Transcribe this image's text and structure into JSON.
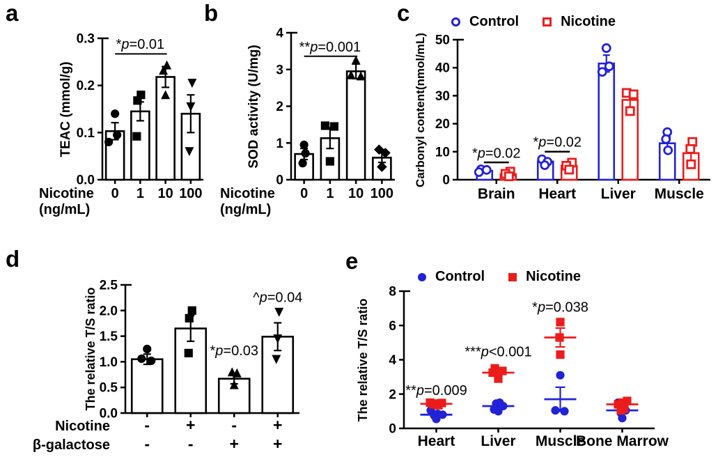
{
  "figure": {
    "background": "#ffffff",
    "colors": {
      "control": "#2222d6",
      "nicotine": "#ed1c1c",
      "black": "#000000"
    }
  },
  "panels": {
    "a": {
      "letter": "a"
    },
    "b": {
      "letter": "b"
    },
    "c": {
      "letter": "c",
      "legend": [
        {
          "label": "Control",
          "marker": "open-circle",
          "color": "#2222d6"
        },
        {
          "label": "Nicotine",
          "marker": "open-square",
          "color": "#ed1c1c"
        }
      ]
    },
    "d": {
      "letter": "d"
    },
    "e": {
      "letter": "e",
      "legend": [
        {
          "label": "Control",
          "marker": "circle",
          "color": "#2222d6"
        },
        {
          "label": "Nicotine",
          "marker": "square",
          "color": "#ed1c1c"
        }
      ]
    }
  },
  "chart_data": [
    {
      "id": "a",
      "type": "bar",
      "title": "",
      "ylabel": "TEAC (mmol/g)",
      "ylim": [
        0,
        0.3
      ],
      "yticks": [
        0,
        0.1,
        0.2,
        0.3
      ],
      "ytick_labels": [
        "0.0",
        "0.1",
        "0.2",
        "0.3"
      ],
      "categories": [
        "0",
        "1",
        "10",
        "100"
      ],
      "xtick_labels": [
        "0",
        "1",
        "10",
        "100"
      ],
      "xaxis_prefix": "Nicotine",
      "xaxis_prefix2": "(ng/mL)",
      "values": [
        0.103,
        0.145,
        0.218,
        0.14
      ],
      "errors": [
        0.018,
        0.02,
        0.022,
        0.04
      ],
      "points": [
        [
          0.14,
          0.095,
          0.08
        ],
        [
          0.18,
          0.168,
          0.092
        ],
        [
          0.243,
          0.232,
          0.18
        ],
        [
          0.205,
          0.155,
          0.06
        ]
      ],
      "point_dx": [
        [
          0,
          3,
          -9
        ],
        [
          1,
          -4,
          -5
        ],
        [
          2,
          -3,
          0
        ],
        [
          2,
          0,
          -2
        ]
      ],
      "point_markers": [
        "circle",
        "square",
        "triangle-up",
        "triangle-down"
      ],
      "annotation": {
        "pre": "*",
        "post": "=0.01",
        "from": 0,
        "to": 2,
        "line_y": 0.267,
        "text_y": 0.278
      }
    },
    {
      "id": "b",
      "type": "bar",
      "title": "",
      "ylabel": "SOD activity (U/mg)",
      "ylim": [
        0,
        4
      ],
      "yticks": [
        0,
        1,
        2,
        3,
        4
      ],
      "ytick_labels": [
        "0",
        "1",
        "2",
        "3",
        "4"
      ],
      "categories": [
        "0",
        "1",
        "10",
        "100"
      ],
      "xtick_labels": [
        "0",
        "1",
        "10",
        "100"
      ],
      "xaxis_prefix": "Nicotine",
      "xaxis_prefix2": "(ng/mL)",
      "values": [
        0.7,
        1.13,
        2.95,
        0.6
      ],
      "errors": [
        0.15,
        0.28,
        0.2,
        0.13
      ],
      "points": [
        [
          0.95,
          0.72,
          0.45
        ],
        [
          1.47,
          1.45,
          0.5
        ],
        [
          3.25,
          2.85,
          2.82
        ],
        [
          0.82,
          0.73,
          0.35
        ]
      ],
      "point_dx": [
        [
          0,
          2,
          -2
        ],
        [
          -7,
          6,
          0
        ],
        [
          0,
          -7,
          7
        ],
        [
          -4,
          5,
          0
        ]
      ],
      "point_markers": [
        "circle",
        "square",
        "triangle-up",
        "diamond"
      ],
      "annotation": {
        "pre": "**",
        "post": "=0.001",
        "from": 0,
        "to": 2,
        "line_y": 3.36,
        "text_y": 3.49
      }
    },
    {
      "id": "c",
      "type": "grouped-bar",
      "title": "",
      "ylabel": "Carbonyl content(nmol/mL)",
      "ylim": [
        0,
        50
      ],
      "yticks": [
        0,
        10,
        20,
        30,
        40,
        50
      ],
      "ytick_labels": [
        "0",
        "10",
        "20",
        "30",
        "40",
        "50"
      ],
      "categories": [
        "Brain",
        "Heart",
        "Liver",
        "Muscle"
      ],
      "legend_position": "top",
      "series": [
        {
          "name": "Control",
          "color": "#2222d6",
          "marker": "circle",
          "values": [
            3.2,
            6.5,
            41.5,
            13
          ],
          "errors": [
            0.5,
            0.7,
            3,
            2.3
          ],
          "points": [
            [
              3.7,
              3.5,
              2.7
            ],
            [
              7.3,
              6.4,
              5.2
            ],
            [
              47,
              40.5,
              38.5
            ],
            [
              17,
              14.5,
              10.5
            ]
          ],
          "point_dx": [
            [
              -5,
              3,
              -8
            ],
            [
              -5,
              3,
              -1
            ],
            [
              0,
              4,
              -6
            ],
            [
              0,
              -2,
              1
            ]
          ]
        },
        {
          "name": "Nicotine",
          "color": "#ed1c1c",
          "marker": "square",
          "values": [
            2,
            5,
            28.5,
            9.5
          ],
          "errors": [
            0.7,
            0.9,
            2.5,
            3
          ],
          "points": [
            [
              2.9,
              2.1,
              1.2
            ],
            [
              6.1,
              5,
              3.6
            ],
            [
              31,
              30.5,
              24.5
            ],
            [
              13.5,
              11,
              5.5
            ]
          ],
          "point_dx": [
            [
              3,
              -4,
              1
            ],
            [
              4,
              -4,
              0
            ],
            [
              -5,
              5,
              0
            ],
            [
              2,
              -1,
              0
            ]
          ]
        }
      ],
      "annotations": [
        {
          "pre": "*",
          "post": "=0.02",
          "cat": 0,
          "line_y": 6.2,
          "text_y": 7.8
        },
        {
          "pre": "*",
          "post": "=0.02",
          "cat": 1,
          "line_y": 10,
          "text_y": 11.8
        }
      ]
    },
    {
      "id": "d",
      "type": "bar",
      "title": "",
      "ylabel": "The relative T/S ratio",
      "ylim": [
        0,
        2.5
      ],
      "yticks": [
        0,
        0.5,
        1,
        1.5,
        2,
        2.5
      ],
      "ytick_labels": [
        "0.0",
        "0.5",
        "1.0",
        "1.5",
        "2.0",
        "2.5"
      ],
      "categories": [
        "1",
        "2",
        "3",
        "4"
      ],
      "xrows": [
        {
          "label": "Nicotine",
          "values": [
            "-",
            "+",
            "-",
            "+"
          ]
        },
        {
          "label": "β-galactose",
          "values": [
            "-",
            "-",
            "+",
            "+"
          ]
        }
      ],
      "values": [
        1.05,
        1.65,
        0.67,
        1.49
      ],
      "errors": [
        0.1,
        0.25,
        0.1,
        0.27
      ],
      "points": [
        [
          1.25,
          1.06,
          1.02
        ],
        [
          2.0,
          1.85,
          1.17
        ],
        [
          0.8,
          0.78,
          0.55
        ],
        [
          1.97,
          1.45,
          1.05
        ]
      ],
      "point_dx": [
        [
          0,
          -8,
          6
        ],
        [
          2,
          -2,
          -3
        ],
        [
          -3,
          4,
          0
        ],
        [
          2,
          0,
          -2
        ]
      ],
      "point_markers": [
        "circle",
        "square",
        "triangle-up",
        "triangle-down"
      ],
      "annotations": [
        {
          "pre": "*",
          "post": "=0.03",
          "bar": 2,
          "y": 1.13
        },
        {
          "pre": "^",
          "post": "=0.04",
          "bar": 3,
          "y": 2.17
        }
      ]
    },
    {
      "id": "e",
      "type": "scatter",
      "title": "",
      "ylabel": "The relative T/S ratio",
      "ylim": [
        0,
        8
      ],
      "yticks": [
        0,
        2,
        4,
        6,
        8
      ],
      "ytick_labels": [
        "0",
        "2",
        "4",
        "6",
        "8"
      ],
      "categories": [
        "Heart",
        "Liver",
        "Muscle",
        "Bone Marrow"
      ],
      "legend_position": "top",
      "series": [
        {
          "name": "Control",
          "color": "#2222d6",
          "marker": "circle",
          "groups": [
            {
              "mean": 0.8,
              "sem": 0.09,
              "points": [
                1.05,
                0.85,
                0.8,
                0.75,
                0.55
              ],
              "dx": [
                -8,
                2,
                9,
                -3,
                0
              ]
            },
            {
              "mean": 1.3,
              "sem": 0.1,
              "points": [
                1.5,
                1.45,
                1.3,
                1.1,
                1.0
              ],
              "dx": [
                2,
                -3,
                7,
                -6,
                0
              ]
            },
            {
              "mean": 1.7,
              "sem": 0.7,
              "points": [
                3.1,
                1.05,
                1.0
              ],
              "dx": [
                0,
                -7,
                6
              ]
            },
            {
              "mean": 1.05,
              "sem": 0.16,
              "points": [
                1.5,
                1.2,
                1.05,
                0.9,
                0.6
              ],
              "dx": [
                -6,
                0,
                5,
                -2,
                0
              ]
            }
          ]
        },
        {
          "name": "Nicotine",
          "color": "#ed1c1c",
          "marker": "square",
          "groups": [
            {
              "mean": 1.43,
              "sem": 0.06,
              "points": [
                1.5,
                1.48,
                1.45,
                1.4,
                1.35
              ],
              "dx": [
                -9,
                8,
                0,
                -4,
                3
              ]
            },
            {
              "mean": 3.25,
              "sem": 0.1,
              "points": [
                3.5,
                3.35,
                3.3,
                3.25,
                2.9
              ],
              "dx": [
                -5,
                6,
                0,
                -8,
                0
              ]
            },
            {
              "mean": 5.3,
              "sem": 0.55,
              "points": [
                6.2,
                5.3,
                4.3
              ],
              "dx": [
                0,
                -1,
                0
              ]
            },
            {
              "mean": 1.4,
              "sem": 0.11,
              "points": [
                1.6,
                1.5,
                1.4,
                1.15,
                1.05
              ],
              "dx": [
                7,
                0,
                -6,
                3,
                -2
              ]
            }
          ]
        }
      ],
      "annotations": [
        {
          "pre": "**",
          "post": "=0.009",
          "cat": 0,
          "y": 1.95
        },
        {
          "pre": "***",
          "post": "<0.001",
          "cat": 1,
          "y": 4.2
        },
        {
          "pre": "*",
          "post": "=0.038",
          "cat": 2,
          "y": 6.8
        }
      ]
    }
  ]
}
